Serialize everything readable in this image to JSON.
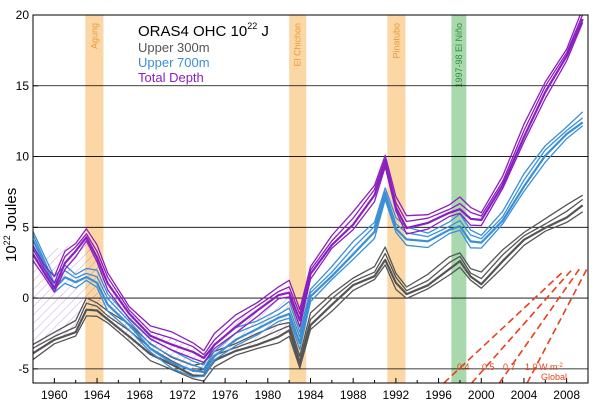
{
  "chart_data": {
    "type": "line",
    "title_main": "ORAS4  OHC  10",
    "title_sup": "22",
    "title_unit": " J",
    "ylabel_main": "10",
    "ylabel_sup": "22",
    "ylabel_unit": " Joules",
    "xlim": [
      1958,
      2010
    ],
    "ylim": [
      -6,
      20
    ],
    "x_ticks": [
      1960,
      1964,
      1968,
      1972,
      1976,
      1980,
      1984,
      1988,
      1992,
      1996,
      2000,
      2004,
      2008
    ],
    "x_tick_labels": [
      "1960",
      "1964",
      "1968",
      "1972",
      "1976",
      "1980",
      "1984",
      "1988",
      "1992",
      "1996",
      "2000",
      "2004",
      "2008"
    ],
    "y_ticks": [
      -5,
      0,
      5,
      10,
      15,
      20
    ],
    "y_tick_labels": [
      "-5",
      "0",
      "5",
      "10",
      "15",
      "20"
    ],
    "grid_y": true,
    "colors": {
      "upper300": "#555555",
      "upper700": "#3a8fd6",
      "total": "#8a1fbf",
      "volcano_band": "#fbd7a6",
      "volcano_text": "#e89a3c",
      "elnino_band": "#a9d8ad",
      "elnino_text": "#2f8f3f",
      "reference": "#e8401c"
    },
    "bands": [
      {
        "label": "Agung",
        "start": 1962.9,
        "end": 1964.6,
        "kind": "volcano"
      },
      {
        "label": "El Chichon",
        "start": 1982.0,
        "end": 1983.6,
        "kind": "volcano"
      },
      {
        "label": "Pinatubo",
        "start": 1991.2,
        "end": 1992.9,
        "kind": "volcano"
      },
      {
        "label": "1997-98 El Niño",
        "start": 1997.2,
        "end": 1998.6,
        "kind": "elnino"
      }
    ],
    "series": [
      {
        "name": "Upper 300m",
        "color_key": "upper300",
        "x": [
          1958,
          1960,
          1962,
          1963,
          1964,
          1965,
          1967,
          1969,
          1971,
          1973,
          1974,
          1975,
          1977,
          1979,
          1981,
          1982,
          1983,
          1984,
          1986,
          1988,
          1990,
          1991,
          1992,
          1993,
          1995,
          1997,
          1998,
          1999,
          2000,
          2002,
          2004,
          2006,
          2008,
          2009.5
        ],
        "values": [
          -4.0,
          -3.0,
          -2.3,
          -0.8,
          -1.0,
          -1.5,
          -2.6,
          -4.0,
          -4.8,
          -5.4,
          -5.4,
          -4.5,
          -3.8,
          -3.2,
          -2.7,
          -2.4,
          -4.7,
          -1.8,
          -0.5,
          0.8,
          1.6,
          2.8,
          1.0,
          0.2,
          1.0,
          2.1,
          2.5,
          1.5,
          1.1,
          2.6,
          4.0,
          5.0,
          5.8,
          6.5
        ]
      },
      {
        "name": "Upper 700m",
        "color_key": "upper700",
        "x": [
          1958,
          1959,
          1960,
          1961,
          1962,
          1963,
          1964,
          1965,
          1967,
          1969,
          1971,
          1973,
          1974,
          1975,
          1977,
          1979,
          1981,
          1982,
          1983,
          1984,
          1986,
          1988,
          1990,
          1991,
          1992,
          1993,
          1995,
          1997,
          1998,
          1999,
          2000,
          2002,
          2004,
          2006,
          2008,
          2009.5
        ],
        "values": [
          4.0,
          2.5,
          0.8,
          1.5,
          1.0,
          1.5,
          1.2,
          -0.5,
          -2.0,
          -3.5,
          -4.5,
          -5.2,
          -5.3,
          -4.0,
          -2.9,
          -2.3,
          -1.4,
          -1.0,
          -3.2,
          0.0,
          1.6,
          3.2,
          4.6,
          7.2,
          5.0,
          4.2,
          3.9,
          4.8,
          5.2,
          4.0,
          3.8,
          5.5,
          8.0,
          10.0,
          11.5,
          12.5
        ]
      },
      {
        "name": "Total Depth",
        "color_key": "total",
        "x": [
          1958,
          1959,
          1960,
          1961,
          1962,
          1963,
          1964,
          1965,
          1967,
          1969,
          1971,
          1973,
          1974,
          1975,
          1977,
          1979,
          1981,
          1982,
          1983,
          1984,
          1986,
          1988,
          1990,
          1991,
          1992,
          1993,
          1995,
          1997,
          1998,
          1999,
          2000,
          2002,
          2004,
          2006,
          2008,
          2009.5
        ],
        "values": [
          3.0,
          1.8,
          0.8,
          2.5,
          3.2,
          4.3,
          3.0,
          1.0,
          -1.2,
          -2.6,
          -3.2,
          -3.9,
          -4.3,
          -3.2,
          -2.0,
          -1.0,
          0.2,
          0.5,
          -1.6,
          1.6,
          3.8,
          5.3,
          7.2,
          9.5,
          6.5,
          5.0,
          5.2,
          6.0,
          6.4,
          5.6,
          5.4,
          8.0,
          11.5,
          14.5,
          17.0,
          19.8
        ]
      }
    ],
    "envelope": {
      "label": "",
      "x": [
        1958,
        1960,
        1962,
        1963,
        1964,
        1965,
        1967,
        1969,
        1971,
        1973,
        1974,
        1975,
        1977,
        1979,
        1981,
        1982
      ],
      "upper": [
        2.5,
        3.5,
        3.8,
        4.5,
        3.2,
        1.5,
        -0.8,
        -2.2,
        -2.8,
        -3.5,
        -4.0,
        -3.0,
        -1.6,
        -0.7,
        0.5,
        0.9
      ],
      "lower": [
        -4.0,
        -3.0,
        -2.2,
        -0.6,
        -1.0,
        -1.8,
        -3.0,
        -4.2,
        -4.9,
        -5.5,
        -5.5,
        -4.6,
        -3.8,
        -3.1,
        -2.6,
        -2.3
      ]
    },
    "legend": {
      "position": "top-left",
      "entries": [
        {
          "label": "Upper 300m",
          "color_key": "upper300"
        },
        {
          "label": "Upper 700m",
          "color_key": "upper700"
        },
        {
          "label": "Total Depth",
          "color_key": "total"
        }
      ]
    },
    "reference_lines": {
      "labels": [
        "0.4",
        "0.5",
        "0.7",
        "1.0",
        "W m"
      ],
      "unit_sup": "-2",
      "caption": "Global",
      "rates_Wm2": [
        0.4,
        0.5,
        0.7,
        1.0
      ]
    }
  }
}
